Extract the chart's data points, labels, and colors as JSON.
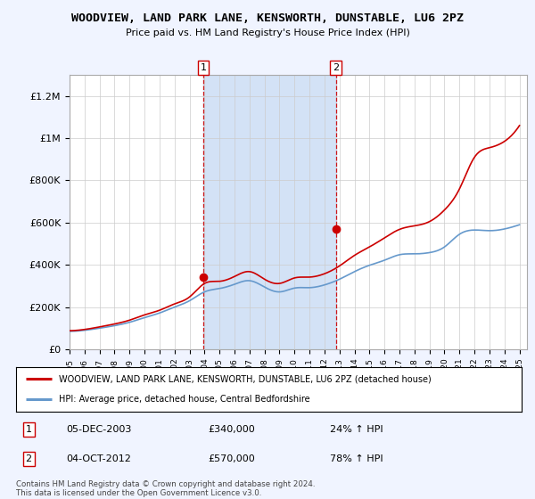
{
  "title": "WOODVIEW, LAND PARK LANE, KENSWORTH, DUNSTABLE, LU6 2PZ",
  "subtitle": "Price paid vs. HM Land Registry's House Price Index (HPI)",
  "ylim": [
    0,
    1300000
  ],
  "yticks": [
    0,
    200000,
    400000,
    600000,
    800000,
    1000000,
    1200000
  ],
  "ytick_labels": [
    "£0",
    "£200K",
    "£400K",
    "£600K",
    "£800K",
    "£1M",
    "£1.2M"
  ],
  "hpi_color": "#6699cc",
  "price_color": "#cc0000",
  "marker_color": "#cc0000",
  "sale1_date_num": 2003.92,
  "sale1_price": 340000,
  "sale1_label": "1",
  "sale1_pct": "24% ↑ HPI",
  "sale1_date_str": "05-DEC-2003",
  "sale2_date_num": 2012.75,
  "sale2_price": 570000,
  "sale2_label": "2",
  "sale2_pct": "78% ↑ HPI",
  "sale2_date_str": "04-OCT-2012",
  "legend_line1": "WOODVIEW, LAND PARK LANE, KENSWORTH, DUNSTABLE, LU6 2PZ (detached house)",
  "legend_line2": "HPI: Average price, detached house, Central Bedfordshire",
  "footnote": "Contains HM Land Registry data © Crown copyright and database right 2024.\nThis data is licensed under the Open Government Licence v3.0.",
  "background_color": "#f0f4ff",
  "plot_bg": "#ffffff",
  "shade_color": "#ccddf5",
  "years": [
    1995,
    1996,
    1997,
    1998,
    1999,
    2000,
    2001,
    2002,
    2003,
    2004,
    2005,
    2006,
    2007,
    2008,
    2009,
    2010,
    2011,
    2012,
    2013,
    2014,
    2015,
    2016,
    2017,
    2018,
    2019,
    2020,
    2021,
    2022,
    2023,
    2024,
    2025
  ],
  "hpi_values": [
    85000,
    90000,
    100000,
    112000,
    128000,
    150000,
    172000,
    200000,
    230000,
    272000,
    288000,
    308000,
    325000,
    295000,
    272000,
    290000,
    292000,
    305000,
    332000,
    368000,
    398000,
    422000,
    448000,
    452000,
    458000,
    485000,
    545000,
    565000,
    562000,
    570000,
    590000
  ],
  "price_values": [
    88000,
    94000,
    106000,
    120000,
    138000,
    163000,
    185000,
    215000,
    248000,
    312000,
    322000,
    345000,
    368000,
    332000,
    312000,
    338000,
    342000,
    358000,
    395000,
    445000,
    485000,
    528000,
    568000,
    585000,
    605000,
    660000,
    760000,
    910000,
    955000,
    985000,
    1060000
  ]
}
